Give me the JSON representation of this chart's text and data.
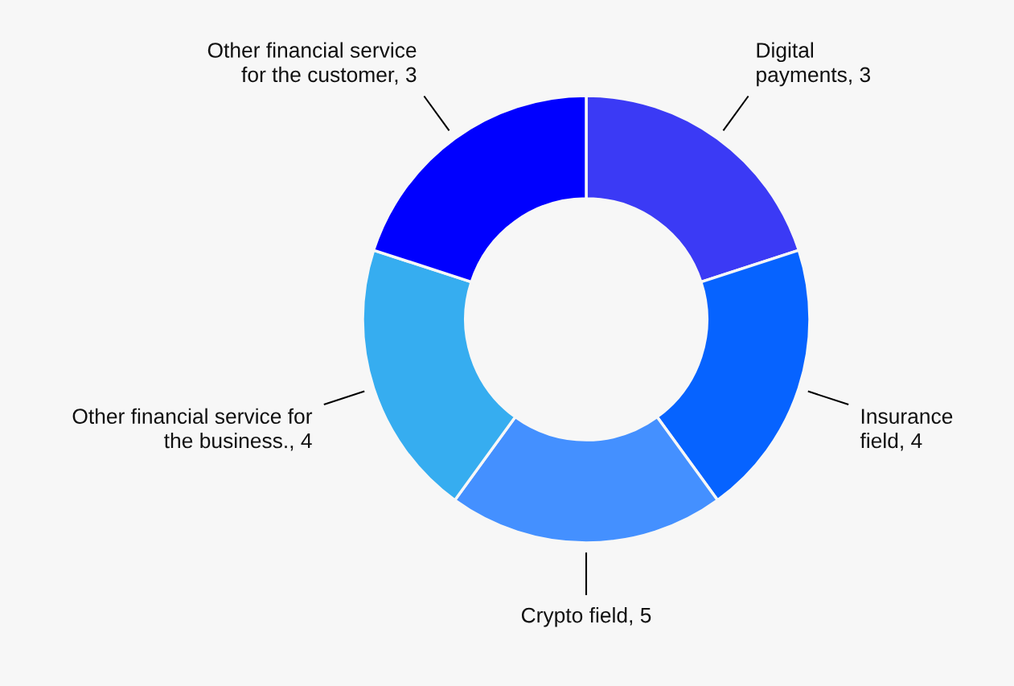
{
  "chart_data": {
    "type": "donut",
    "categories": [
      "Digital\npayments, 3",
      "Insurance\nfield, 4",
      "Crypto field, 5",
      "Other financial service for\nthe business., 4",
      "Other financial service\nfor the customer, 3"
    ],
    "values": [
      20,
      20,
      20,
      20,
      20
    ],
    "colors": [
      "#3b3af5",
      "#0663ff",
      "#4490ff",
      "#36adf0",
      "#0000ff"
    ]
  }
}
